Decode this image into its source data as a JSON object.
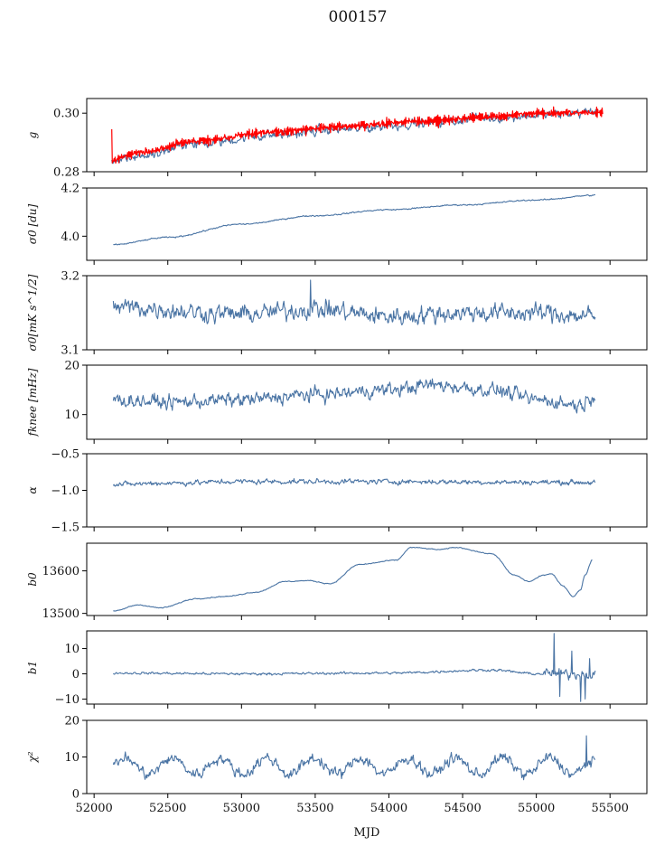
{
  "title": "000157",
  "xlabel": "MJD",
  "colors": {
    "series": "#4a74a4",
    "fit": "#ff0000",
    "axes": "#000000"
  },
  "chart_data": [
    {
      "type": "line",
      "ylabel": "g",
      "xlim": [
        51950,
        55750
      ],
      "ylim": [
        0.28,
        0.305
      ],
      "yticks": [
        0.28,
        0.3
      ],
      "ytick_labels": [
        "0.28",
        "0.30"
      ],
      "series": [
        {
          "color": "#4a74a4",
          "noise": 0.0012,
          "knots": [
            [
              52120,
              0.2835
            ],
            [
              52300,
              0.2855
            ],
            [
              52700,
              0.2895
            ],
            [
              53200,
              0.2925
            ],
            [
              53700,
              0.2945
            ],
            [
              54200,
              0.2965
            ],
            [
              54700,
              0.2985
            ],
            [
              55100,
              0.2995
            ],
            [
              55420,
              0.3005
            ]
          ]
        },
        {
          "color": "#ff0000",
          "noise": 0.0007,
          "knots": [
            [
              52120,
              0.2842
            ],
            [
              52300,
              0.2865
            ],
            [
              52700,
              0.2905
            ],
            [
              53200,
              0.2935
            ],
            [
              53700,
              0.2955
            ],
            [
              54200,
              0.2972
            ],
            [
              54700,
              0.299
            ],
            [
              55100,
              0.3
            ],
            [
              55450,
              0.3002
            ]
          ]
        }
      ]
    },
    {
      "type": "line",
      "ylabel": "σ0 [du]",
      "xlim": [
        51950,
        55750
      ],
      "ylim": [
        3.9,
        4.2
      ],
      "yticks": [
        4.0,
        4.2
      ],
      "ytick_labels": [
        "4.0",
        "4.2"
      ],
      "series": [
        {
          "color": "#4a74a4",
          "noise": 0.002,
          "knots": [
            [
              52130,
              3.965
            ],
            [
              52500,
              3.995
            ],
            [
              53000,
              4.05
            ],
            [
              53500,
              4.085
            ],
            [
              54000,
              4.11
            ],
            [
              54500,
              4.13
            ],
            [
              55000,
              4.15
            ],
            [
              55400,
              4.17
            ]
          ]
        }
      ]
    },
    {
      "type": "line",
      "ylabel": "σ0[mK s^1/2]",
      "xlim": [
        51950,
        55750
      ],
      "ylim": [
        3.1,
        3.2
      ],
      "yticks": [
        3.1,
        3.2
      ],
      "ytick_labels": [
        "3.1",
        "3.2"
      ],
      "series": [
        {
          "color": "#4a74a4",
          "noise": 0.009,
          "knots": [
            [
              52130,
              3.158
            ],
            [
              53000,
              3.148
            ],
            [
              53500,
              3.155
            ],
            [
              54000,
              3.145
            ],
            [
              54500,
              3.15
            ],
            [
              55000,
              3.15
            ],
            [
              55400,
              3.145
            ]
          ]
        }
      ]
    },
    {
      "type": "line",
      "ylabel": "fknee [mHz]",
      "xlim": [
        51950,
        55750
      ],
      "ylim": [
        5,
        20
      ],
      "yticks": [
        10,
        20
      ],
      "ytick_labels": [
        "10",
        "20"
      ],
      "series": [
        {
          "color": "#4a74a4",
          "noise": 1.0,
          "knots": [
            [
              52130,
              13
            ],
            [
              52500,
              12.5
            ],
            [
              53000,
              13
            ],
            [
              53500,
              14
            ],
            [
              54000,
              15
            ],
            [
              54300,
              16
            ],
            [
              54700,
              15
            ],
            [
              55000,
              13
            ],
            [
              55300,
              12
            ],
            [
              55400,
              14
            ]
          ]
        }
      ]
    },
    {
      "type": "line",
      "ylabel": "α",
      "xlim": [
        51950,
        55750
      ],
      "ylim": [
        -1.5,
        -0.5
      ],
      "yticks": [
        -1.5,
        -1.0,
        -0.5
      ],
      "ytick_labels": [
        "−1.5",
        "−1.0",
        "−0.5"
      ],
      "series": [
        {
          "color": "#4a74a4",
          "noise": 0.025,
          "knots": [
            [
              52130,
              -0.92
            ],
            [
              52500,
              -0.9
            ],
            [
              53000,
              -0.88
            ],
            [
              54000,
              -0.88
            ],
            [
              55000,
              -0.89
            ],
            [
              55400,
              -0.89
            ]
          ]
        }
      ]
    },
    {
      "type": "line",
      "ylabel": "b0",
      "xlim": [
        51950,
        55750
      ],
      "ylim": [
        13495,
        13665
      ],
      "yticks": [
        13500,
        13600
      ],
      "ytick_labels": [
        "13500",
        "13600"
      ],
      "series": [
        {
          "color": "#4a74a4",
          "noise": 0.8,
          "knots": [
            [
              52130,
              13505
            ],
            [
              52300,
              13520
            ],
            [
              52450,
              13513
            ],
            [
              52700,
              13535
            ],
            [
              52900,
              13540
            ],
            [
              53100,
              13550
            ],
            [
              53300,
              13575
            ],
            [
              53450,
              13577
            ],
            [
              53600,
              13570
            ],
            [
              53800,
              13615
            ],
            [
              54050,
              13625
            ],
            [
              54150,
              13655
            ],
            [
              54350,
              13650
            ],
            [
              54450,
              13655
            ],
            [
              54700,
              13640
            ],
            [
              54850,
              13590
            ],
            [
              54950,
              13575
            ],
            [
              55050,
              13590
            ],
            [
              55100,
              13593
            ],
            [
              55180,
              13565
            ],
            [
              55250,
              13540
            ],
            [
              55300,
              13555
            ],
            [
              55330,
              13590
            ],
            [
              55380,
              13625
            ]
          ]
        }
      ]
    },
    {
      "type": "line",
      "ylabel": "b1",
      "xlim": [
        51950,
        55750
      ],
      "ylim": [
        -12,
        17
      ],
      "yticks": [
        -10,
        0,
        10
      ],
      "ytick_labels": [
        "−10",
        "0",
        "10"
      ],
      "series": [
        {
          "color": "#4a74a4",
          "noise": 0.35,
          "knots": [
            [
              52130,
              0.3
            ],
            [
              53000,
              0
            ],
            [
              54000,
              0.3
            ],
            [
              54700,
              1.5
            ],
            [
              55000,
              0
            ],
            [
              55400,
              0
            ]
          ]
        }
      ]
    },
    {
      "type": "line",
      "ylabel": "χ²",
      "xlim": [
        51950,
        55750
      ],
      "ylim": [
        0,
        20
      ],
      "yticks": [
        0,
        10,
        20
      ],
      "ytick_labels": [
        "0",
        "10",
        "20"
      ],
      "xticks": [
        52000,
        52500,
        53000,
        53500,
        54000,
        54500,
        55000,
        55500
      ],
      "xtick_labels": [
        "52000",
        "52500",
        "53000",
        "53500",
        "54000",
        "54500",
        "55000",
        "55500"
      ],
      "series": [
        {
          "color": "#4a74a4",
          "noise": 1.1,
          "knots": [
            [
              52130,
              7.5
            ],
            [
              55400,
              7.5
            ]
          ]
        }
      ]
    }
  ]
}
